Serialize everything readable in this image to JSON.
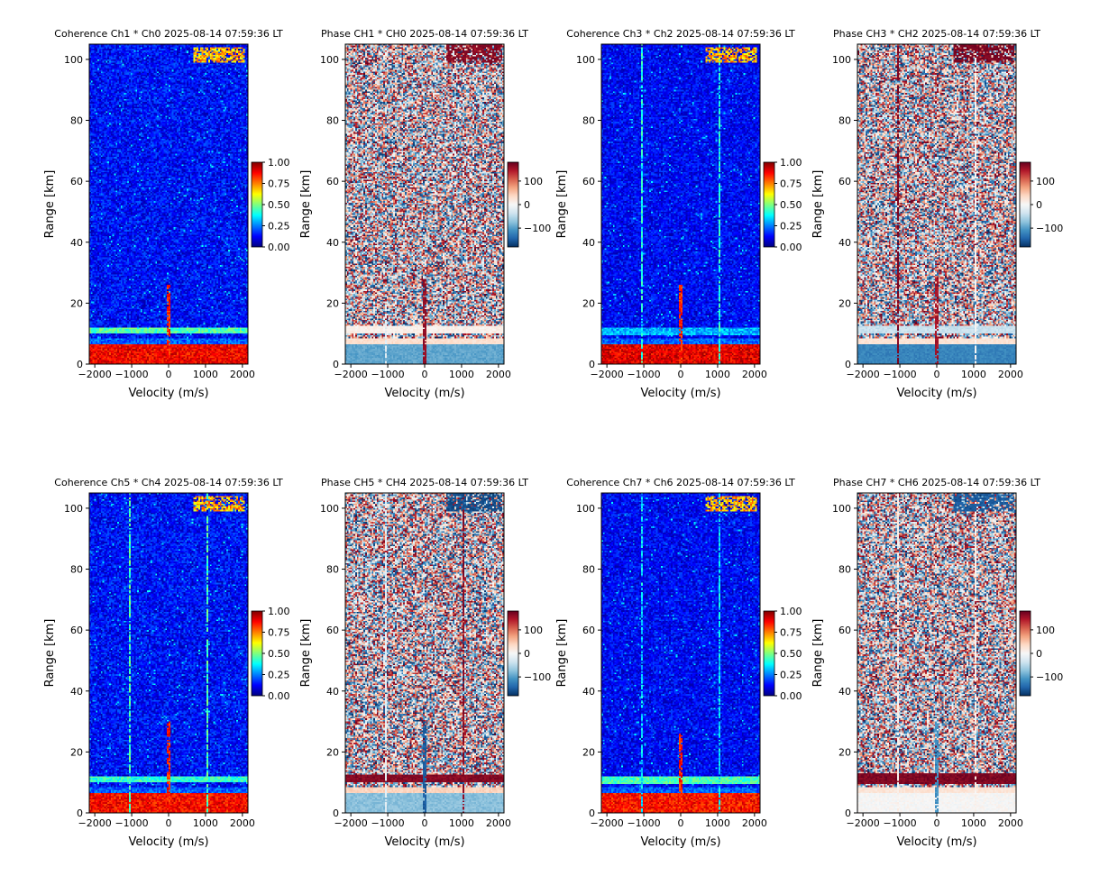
{
  "figure": {
    "layout": {
      "rows": 2,
      "cols": 4
    },
    "colors": {
      "coherence_colormap": [
        "#00007f",
        "#0000ff",
        "#007fff",
        "#00ffff",
        "#7fff7f",
        "#ffff00",
        "#ff7f00",
        "#ff0000",
        "#7f0000"
      ],
      "phase_colormap": [
        "#053061",
        "#2166ac",
        "#4393c3",
        "#92c5de",
        "#d1e5f0",
        "#f7f7f7",
        "#fddbc7",
        "#f4a582",
        "#d6604d",
        "#b2182b",
        "#67001f"
      ]
    }
  },
  "chart_data": [
    {
      "type": "heatmap",
      "kind": "coherence",
      "title": "Coherence Ch1 * Ch0 2025-08-14 07:59:36 LT",
      "xlabel": "Velocity (m/s)",
      "ylabel": "Range [km]",
      "xlim": [
        -2150,
        2150
      ],
      "ylim": [
        0,
        105
      ],
      "xticks": [
        -2000,
        -1000,
        0,
        1000,
        2000
      ],
      "yticks": [
        0,
        20,
        40,
        60,
        80,
        100
      ],
      "colorbar": {
        "range": [
          0,
          1
        ],
        "ticks": [
          0,
          0.25,
          0.5,
          0.75,
          1.0
        ],
        "tick_labels": [
          "0.00",
          "0.25",
          "0.50",
          "0.75",
          "1.00"
        ]
      },
      "background": {
        "mean": 0.13,
        "spread": 0.09
      },
      "bands": [
        {
          "range_km": [
            0,
            6.5
          ],
          "value": 0.88
        },
        {
          "range_km": [
            6.5,
            8.5
          ],
          "value": 0.22
        },
        {
          "range_km": [
            10,
            12
          ],
          "value": 0.45
        }
      ],
      "lines": [
        {
          "velocity": 0,
          "range_km": [
            0,
            26
          ],
          "value": 0.85
        }
      ],
      "features": [
        {
          "velocity": [
            650,
            2050
          ],
          "range_km": [
            99,
            104
          ],
          "value": 0.7
        }
      ]
    },
    {
      "type": "heatmap",
      "kind": "phase",
      "title": "Phase CH1 * CH0 2025-08-14 07:59:36 LT",
      "xlabel": "Velocity (m/s)",
      "ylabel": "Range [km]",
      "xlim": [
        -2150,
        2150
      ],
      "ylim": [
        0,
        105
      ],
      "xticks": [
        -2000,
        -1000,
        0,
        1000,
        2000
      ],
      "yticks": [
        0,
        20,
        40,
        60,
        80,
        100
      ],
      "colorbar": {
        "range": [
          -180,
          180
        ],
        "ticks": [
          100,
          0,
          -100
        ],
        "tick_labels": [
          "100",
          "0",
          "−100"
        ]
      },
      "bands": [
        {
          "range_km": [
            0,
            6.5
          ],
          "value": -95
        },
        {
          "range_km": [
            6.5,
            8.5
          ],
          "value": 30
        },
        {
          "range_km": [
            10,
            12.5
          ],
          "value": 10
        }
      ],
      "lines": [
        {
          "velocity": 0,
          "range_km": [
            0,
            28
          ],
          "value": 160
        },
        {
          "velocity": -1050,
          "range_km": [
            0,
            20
          ],
          "value": -20
        }
      ],
      "features": [
        {
          "velocity": [
            600,
            2100
          ],
          "range_km": [
            99,
            105
          ],
          "value": 165
        }
      ]
    },
    {
      "type": "heatmap",
      "kind": "coherence",
      "title": "Coherence Ch3 * Ch2 2025-08-14 07:59:36 LT",
      "xlabel": "Velocity (m/s)",
      "ylabel": "Range [km]",
      "xlim": [
        -2150,
        2150
      ],
      "ylim": [
        0,
        105
      ],
      "xticks": [
        -2000,
        -1000,
        0,
        1000,
        2000
      ],
      "yticks": [
        0,
        20,
        40,
        60,
        80,
        100
      ],
      "colorbar": {
        "range": [
          0,
          1
        ],
        "ticks": [
          0,
          0.25,
          0.5,
          0.75,
          1.0
        ],
        "tick_labels": [
          "0.00",
          "0.25",
          "0.50",
          "0.75",
          "1.00"
        ]
      },
      "background": {
        "mean": 0.12,
        "spread": 0.08
      },
      "bands": [
        {
          "range_km": [
            0,
            6.5
          ],
          "value": 0.9
        },
        {
          "range_km": [
            6.5,
            8.5
          ],
          "value": 0.22
        },
        {
          "range_km": [
            9.5,
            12
          ],
          "value": 0.3
        }
      ],
      "lines": [
        {
          "velocity": 0,
          "range_km": [
            0,
            26
          ],
          "value": 0.85
        },
        {
          "velocity": -1050,
          "range_km": [
            0,
            105
          ],
          "value": 0.4
        },
        {
          "velocity": 1050,
          "range_km": [
            0,
            105
          ],
          "value": 0.4
        }
      ],
      "features": [
        {
          "velocity": [
            650,
            2050
          ],
          "range_km": [
            99,
            104
          ],
          "value": 0.7
        }
      ]
    },
    {
      "type": "heatmap",
      "kind": "phase",
      "title": "Phase CH3 * CH2 2025-08-14 07:59:36 LT",
      "xlabel": "Velocity (m/s)",
      "ylabel": "Range [km]",
      "xlim": [
        -2150,
        2150
      ],
      "ylim": [
        0,
        105
      ],
      "xticks": [
        -2000,
        -1000,
        0,
        1000,
        2000
      ],
      "yticks": [
        0,
        20,
        40,
        60,
        80,
        100
      ],
      "colorbar": {
        "range": [
          -180,
          180
        ],
        "ticks": [
          100,
          0,
          -100
        ],
        "tick_labels": [
          "100",
          "0",
          "−100"
        ]
      },
      "bands": [
        {
          "range_km": [
            0,
            6.5
          ],
          "value": -120
        },
        {
          "range_km": [
            6.5,
            8.5
          ],
          "value": 25
        },
        {
          "range_km": [
            10,
            12.5
          ],
          "value": -40
        }
      ],
      "lines": [
        {
          "velocity": -1050,
          "range_km": [
            0,
            105
          ],
          "value": 170
        },
        {
          "velocity": 1050,
          "range_km": [
            0,
            105
          ],
          "value": 0
        },
        {
          "velocity": 0,
          "range_km": [
            0,
            28
          ],
          "value": 150
        }
      ],
      "features": [
        {
          "velocity": [
            450,
            2100
          ],
          "range_km": [
            99,
            105
          ],
          "value": 170
        }
      ]
    },
    {
      "type": "heatmap",
      "kind": "coherence",
      "title": "Coherence Ch5 * Ch4 2025-08-14 07:59:36 LT",
      "xlabel": "Velocity (m/s)",
      "ylabel": "Range [km]",
      "xlim": [
        -2150,
        2150
      ],
      "ylim": [
        0,
        105
      ],
      "xticks": [
        -2000,
        -1000,
        0,
        1000,
        2000
      ],
      "yticks": [
        0,
        20,
        40,
        60,
        80,
        100
      ],
      "colorbar": {
        "range": [
          0,
          1
        ],
        "ticks": [
          0,
          0.25,
          0.5,
          0.75,
          1.0
        ],
        "tick_labels": [
          "0.00",
          "0.25",
          "0.50",
          "0.75",
          "1.00"
        ]
      },
      "background": {
        "mean": 0.13,
        "spread": 0.09
      },
      "bands": [
        {
          "range_km": [
            0,
            6.5
          ],
          "value": 0.87
        },
        {
          "range_km": [
            6.5,
            8.5
          ],
          "value": 0.22
        },
        {
          "range_km": [
            10,
            12
          ],
          "value": 0.42
        }
      ],
      "lines": [
        {
          "velocity": 0,
          "range_km": [
            0,
            30
          ],
          "value": 0.85
        },
        {
          "velocity": -1050,
          "range_km": [
            0,
            105
          ],
          "value": 0.45
        },
        {
          "velocity": 1050,
          "range_km": [
            0,
            105
          ],
          "value": 0.45
        }
      ],
      "features": [
        {
          "velocity": [
            650,
            2050
          ],
          "range_km": [
            99,
            104
          ],
          "value": 0.7
        }
      ]
    },
    {
      "type": "heatmap",
      "kind": "phase",
      "title": "Phase CH5 * CH4 2025-08-14 07:59:36 LT",
      "xlabel": "Velocity (m/s)",
      "ylabel": "Range [km]",
      "xlim": [
        -2150,
        2150
      ],
      "ylim": [
        0,
        105
      ],
      "xticks": [
        -2000,
        -1000,
        0,
        1000,
        2000
      ],
      "yticks": [
        0,
        20,
        40,
        60,
        80,
        100
      ],
      "colorbar": {
        "range": [
          -180,
          180
        ],
        "ticks": [
          100,
          0,
          -100
        ],
        "tick_labels": [
          "100",
          "0",
          "−100"
        ]
      },
      "bands": [
        {
          "range_km": [
            0,
            6.5
          ],
          "value": -75
        },
        {
          "range_km": [
            6.5,
            8.5
          ],
          "value": 40
        },
        {
          "range_km": [
            10,
            12.5
          ],
          "value": 165
        }
      ],
      "lines": [
        {
          "velocity": 1050,
          "range_km": [
            0,
            105
          ],
          "value": 165
        },
        {
          "velocity": -1050,
          "range_km": [
            0,
            105
          ],
          "value": -20
        },
        {
          "velocity": 0,
          "range_km": [
            0,
            30
          ],
          "value": -150
        }
      ],
      "features": [
        {
          "velocity": [
            600,
            2100
          ],
          "range_km": [
            99,
            105
          ],
          "value": -160
        }
      ]
    },
    {
      "type": "heatmap",
      "kind": "coherence",
      "title": "Coherence Ch7 * Ch6 2025-08-14 07:59:36 LT",
      "xlabel": "Velocity (m/s)",
      "ylabel": "Range [km]",
      "xlim": [
        -2150,
        2150
      ],
      "ylim": [
        0,
        105
      ],
      "xticks": [
        -2000,
        -1000,
        0,
        1000,
        2000
      ],
      "yticks": [
        0,
        20,
        40,
        60,
        80,
        100
      ],
      "colorbar": {
        "range": [
          0,
          1
        ],
        "ticks": [
          0,
          0.25,
          0.5,
          0.75,
          1.0
        ],
        "tick_labels": [
          "0.00",
          "0.25",
          "0.50",
          "0.75",
          "1.00"
        ]
      },
      "background": {
        "mean": 0.12,
        "spread": 0.08
      },
      "bands": [
        {
          "range_km": [
            0,
            6.5
          ],
          "value": 0.86
        },
        {
          "range_km": [
            6.5,
            8.5
          ],
          "value": 0.22
        },
        {
          "range_km": [
            9.5,
            12
          ],
          "value": 0.45
        }
      ],
      "lines": [
        {
          "velocity": 0,
          "range_km": [
            0,
            26
          ],
          "value": 0.85
        },
        {
          "velocity": -1050,
          "range_km": [
            0,
            105
          ],
          "value": 0.35
        },
        {
          "velocity": 1050,
          "range_km": [
            0,
            105
          ],
          "value": 0.35
        }
      ],
      "features": [
        {
          "velocity": [
            650,
            2050
          ],
          "range_km": [
            99,
            104
          ],
          "value": 0.7
        }
      ]
    },
    {
      "type": "heatmap",
      "kind": "phase",
      "title": "Phase CH7 * CH6 2025-08-14 07:59:36 LT",
      "xlabel": "Velocity (m/s)",
      "ylabel": "Range [km]",
      "xlim": [
        -2150,
        2150
      ],
      "ylim": [
        0,
        105
      ],
      "xticks": [
        -2000,
        -1000,
        0,
        1000,
        2000
      ],
      "yticks": [
        0,
        20,
        40,
        60,
        80,
        100
      ],
      "colorbar": {
        "range": [
          -180,
          180
        ],
        "ticks": [
          100,
          0,
          -100
        ],
        "tick_labels": [
          "100",
          "0",
          "−100"
        ]
      },
      "bands": [
        {
          "range_km": [
            0,
            6.5
          ],
          "value": 0
        },
        {
          "range_km": [
            6.5,
            8.5
          ],
          "value": 25
        },
        {
          "range_km": [
            9.5,
            13
          ],
          "value": 168
        }
      ],
      "lines": [
        {
          "velocity": 0,
          "range_km": [
            0,
            30
          ],
          "value": -110
        },
        {
          "velocity": -1050,
          "range_km": [
            0,
            105
          ],
          "value": 10
        },
        {
          "velocity": 1050,
          "range_km": [
            0,
            105
          ],
          "value": 10
        }
      ],
      "features": [
        {
          "velocity": [
            450,
            2100
          ],
          "range_km": [
            99,
            105
          ],
          "value": -150
        }
      ]
    }
  ]
}
